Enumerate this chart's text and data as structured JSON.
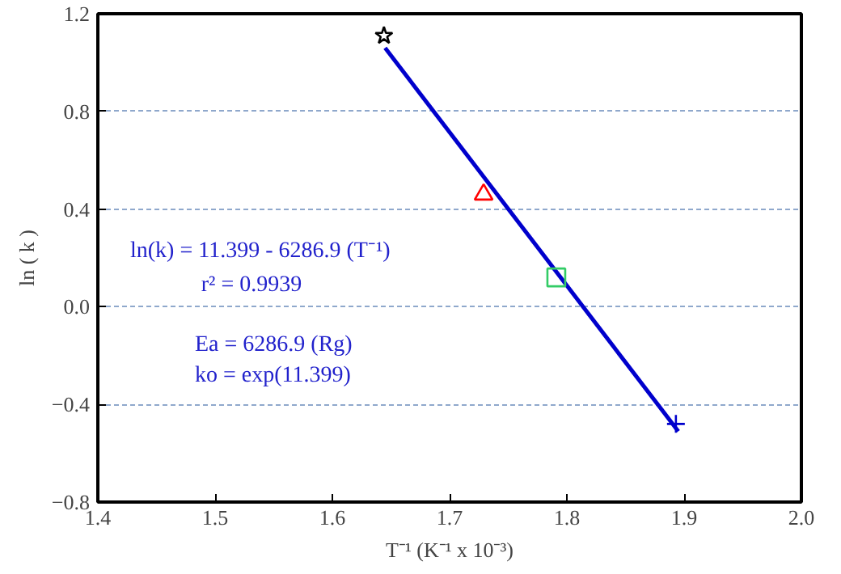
{
  "chart_data": {
    "type": "scatter",
    "xlabel": "T⁻¹ (K⁻¹ x 10⁻³)",
    "ylabel": "ln ( k )",
    "series": [
      {
        "marker": "star",
        "color": "#000000",
        "x": [
          1.644
        ],
        "values": [
          1.11
        ]
      },
      {
        "marker": "triangle",
        "color": "#ff0000",
        "x": [
          1.729
        ],
        "values": [
          0.46
        ]
      },
      {
        "marker": "square",
        "color": "#33cc66",
        "x": [
          1.791
        ],
        "values": [
          0.12
        ]
      },
      {
        "marker": "cross",
        "color": "#0000cc",
        "x": [
          1.893
        ],
        "values": [
          -0.48
        ]
      },
      {
        "type": "line",
        "color": "#0000cc",
        "x": [
          1.645,
          1.895
        ],
        "values": [
          1.06,
          -0.51
        ]
      }
    ],
    "xlim": [
      1.4,
      2.0
    ],
    "xticks": [
      1.4,
      1.5,
      1.6,
      1.7,
      1.8,
      1.9,
      {
        "value": 2.0,
        "label": "2.0"
      }
    ],
    "ylim": [
      -0.8,
      1.2
    ],
    "yticks": [
      -0.8,
      -0.4,
      {
        "value": 0,
        "label": "0.0"
      },
      0.4,
      0.8,
      1.2
    ],
    "grid": "y",
    "annotations": [
      "ln(k) = 11.399 - 6286.9 (T⁻¹)",
      "r² = 0.9939",
      "Ea = 6286.9 (Rg)",
      "ko = exp(11.399)"
    ]
  }
}
